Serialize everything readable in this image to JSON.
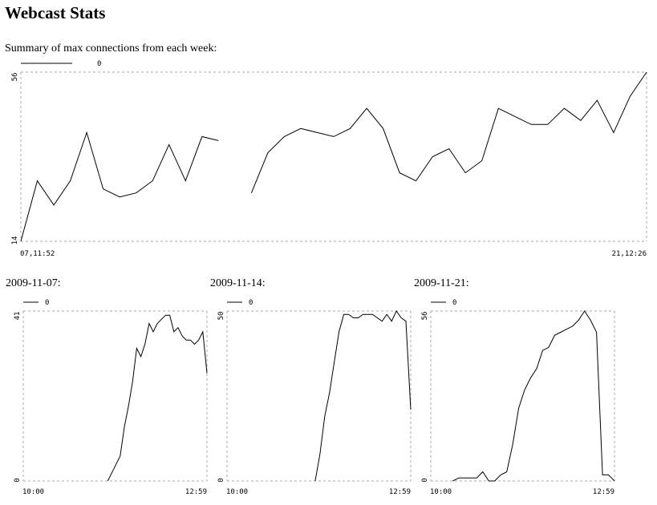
{
  "page": {
    "title": "Webcast Stats",
    "summary_label": "Summary of max connections from each week:"
  },
  "chart_data": [
    {
      "type": "line",
      "series": [
        {
          "name": "0",
          "values": [
            14,
            29,
            23,
            29,
            41,
            27,
            25,
            26,
            29,
            38,
            29,
            40,
            39,
            null,
            26,
            36,
            40,
            42,
            41,
            40,
            42,
            47,
            42,
            31,
            29,
            35,
            37,
            31,
            34,
            47,
            45,
            43,
            43,
            47,
            44,
            49,
            41,
            50,
            56
          ]
        }
      ],
      "x_ticks": [
        "07,11:52",
        "21,12:26"
      ],
      "y_ticks": [
        "14",
        "56"
      ],
      "ylim": [
        14,
        56
      ],
      "grid": true,
      "legend": "top-left"
    },
    {
      "type": "line",
      "title": "2009-11-07:",
      "series": [
        {
          "name": "0",
          "values": [
            0,
            2,
            4,
            6,
            13,
            18,
            24,
            32,
            30,
            33,
            38,
            36,
            38,
            39,
            40,
            40,
            36,
            37,
            35,
            34,
            34,
            33,
            34,
            36,
            26
          ]
        }
      ],
      "x_ticks": [
        "10:00",
        "12:59"
      ],
      "y_ticks": [
        "0",
        "41"
      ],
      "ylim": [
        0,
        41
      ],
      "grid": true,
      "legend": "top-left"
    },
    {
      "type": "line",
      "title": "2009-11-14:",
      "series": [
        {
          "name": "0",
          "values": [
            0,
            8,
            19,
            26,
            35,
            44,
            49,
            49,
            48,
            48,
            49,
            49,
            49,
            48,
            47,
            49,
            47,
            50,
            48,
            47,
            21
          ]
        }
      ],
      "x_ticks": [
        "10:00",
        "12:59"
      ],
      "y_ticks": [
        "0",
        "50"
      ],
      "ylim": [
        0,
        50
      ],
      "grid": true,
      "legend": "top-left"
    },
    {
      "type": "line",
      "title": "2009-11-21:",
      "series": [
        {
          "name": "0",
          "values": [
            0,
            1,
            1,
            1,
            1,
            3,
            0,
            0,
            2,
            3,
            12,
            24,
            30,
            34,
            37,
            43,
            44,
            48,
            49,
            50,
            51,
            53,
            56,
            53,
            49,
            2,
            2,
            0
          ]
        }
      ],
      "x_ticks": [
        "10:00",
        "12:59"
      ],
      "y_ticks": [
        "0",
        "56"
      ],
      "ylim": [
        0,
        56
      ],
      "grid": true,
      "legend": "top-left"
    }
  ]
}
